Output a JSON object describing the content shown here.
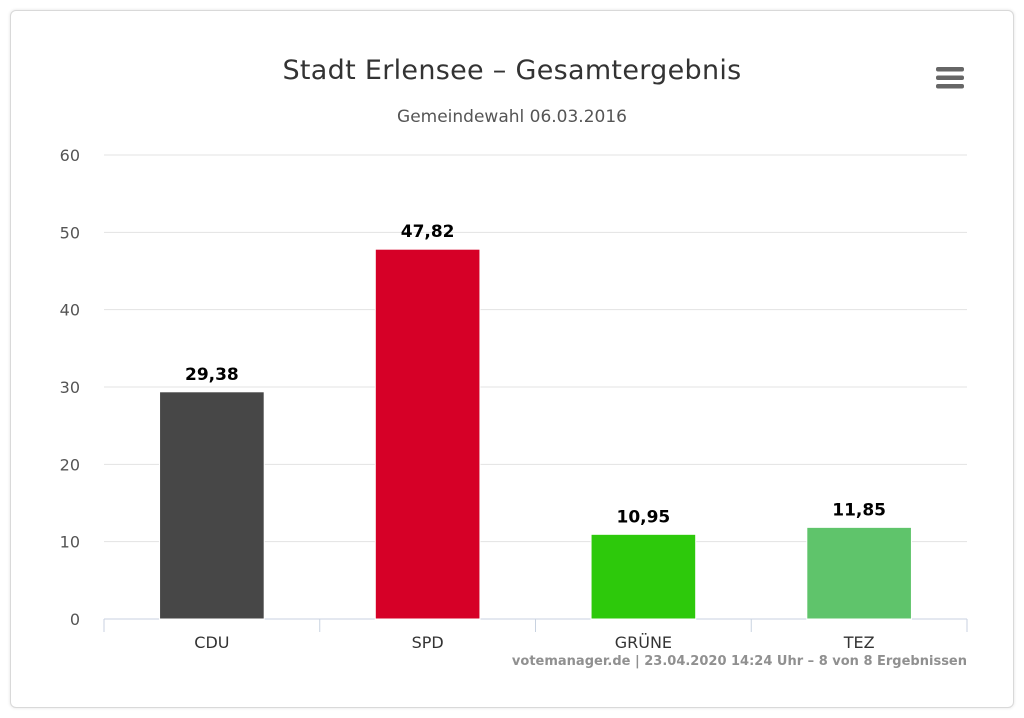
{
  "chart_data": {
    "type": "bar",
    "title": "Stadt Erlensee – Gesamtergebnis",
    "subtitle": "Gemeindewahl 06.03.2016",
    "categories": [
      "CDU",
      "SPD",
      "GRÜNE",
      "TEZ"
    ],
    "values": [
      29.38,
      47.82,
      10.95,
      11.85
    ],
    "value_labels": [
      "29,38",
      "47,82",
      "10,95",
      "11,85"
    ],
    "colors": [
      "#474747",
      "#d60027",
      "#2dc90b",
      "#5fc46b"
    ],
    "ylim": [
      0,
      60
    ],
    "yticks": [
      0,
      10,
      20,
      30,
      40,
      50,
      60
    ],
    "grid": true,
    "legend": "none"
  },
  "credit": "votemanager.de | 23.04.2020 14:24 Uhr – 8 von 8 Ergebnissen",
  "menu_icon": "hamburger-menu-icon"
}
